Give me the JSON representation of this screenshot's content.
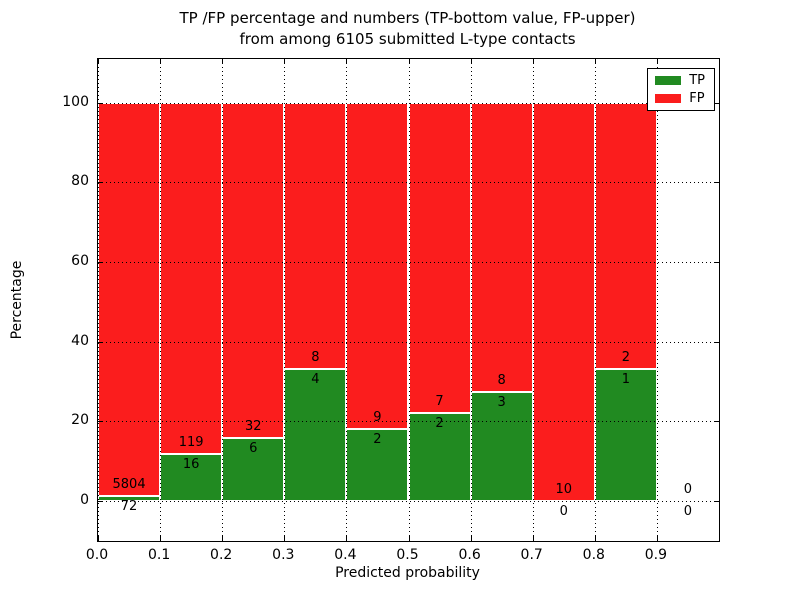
{
  "title": {
    "line1": "TP /FP percentage and numbers (TP-bottom value, FP-upper)",
    "line2": "from among 6105 submitted L-type contacts"
  },
  "chart_data": {
    "type": "bar",
    "stacked": true,
    "title": "TP /FP percentage and numbers (TP-bottom value, FP-upper) from among 6105 submitted L-type contacts",
    "total_contacts": 6105,
    "xlabel": "Predicted probability",
    "ylabel": "Percentage",
    "xlim": [
      0.0,
      1.0
    ],
    "ylim": [
      -10,
      111
    ],
    "grid": true,
    "yticks": [
      0,
      20,
      40,
      60,
      80,
      100
    ],
    "xticks": [
      0.0,
      0.1,
      0.2,
      0.3,
      0.4,
      0.5,
      0.6,
      0.7,
      0.8,
      0.9
    ],
    "xtick_labels": [
      "0.0",
      "0.1",
      "0.2",
      "0.3",
      "0.4",
      "0.5",
      "0.6",
      "0.7",
      "0.8",
      "0.9"
    ],
    "series": [
      {
        "name": "TP",
        "color": "#218a21"
      },
      {
        "name": "FP",
        "color": "#fb1d1d"
      }
    ],
    "legend": {
      "position": "upper right",
      "entries": [
        "TP",
        "FP"
      ]
    },
    "bins": [
      {
        "x_start": 0.0,
        "x_end": 0.1,
        "tp": 72,
        "fp": 5804,
        "tp_pct": 1.2,
        "fp_pct": 98.8
      },
      {
        "x_start": 0.1,
        "x_end": 0.2,
        "tp": 16,
        "fp": 119,
        "tp_pct": 11.9,
        "fp_pct": 88.1
      },
      {
        "x_start": 0.2,
        "x_end": 0.3,
        "tp": 6,
        "fp": 32,
        "tp_pct": 15.8,
        "fp_pct": 84.2
      },
      {
        "x_start": 0.3,
        "x_end": 0.4,
        "tp": 4,
        "fp": 8,
        "tp_pct": 33.3,
        "fp_pct": 66.7
      },
      {
        "x_start": 0.4,
        "x_end": 0.5,
        "tp": 2,
        "fp": 9,
        "tp_pct": 18.2,
        "fp_pct": 81.8
      },
      {
        "x_start": 0.5,
        "x_end": 0.6,
        "tp": 2,
        "fp": 7,
        "tp_pct": 22.2,
        "fp_pct": 77.8
      },
      {
        "x_start": 0.6,
        "x_end": 0.7,
        "tp": 3,
        "fp": 8,
        "tp_pct": 27.3,
        "fp_pct": 72.7
      },
      {
        "x_start": 0.7,
        "x_end": 0.8,
        "tp": 0,
        "fp": 10,
        "tp_pct": 0.0,
        "fp_pct": 100.0
      },
      {
        "x_start": 0.8,
        "x_end": 0.9,
        "tp": 1,
        "fp": 2,
        "tp_pct": 33.3,
        "fp_pct": 66.7
      },
      {
        "x_start": 0.9,
        "x_end": 1.0,
        "tp": 0,
        "fp": 0,
        "tp_pct": null,
        "fp_pct": null
      }
    ]
  }
}
